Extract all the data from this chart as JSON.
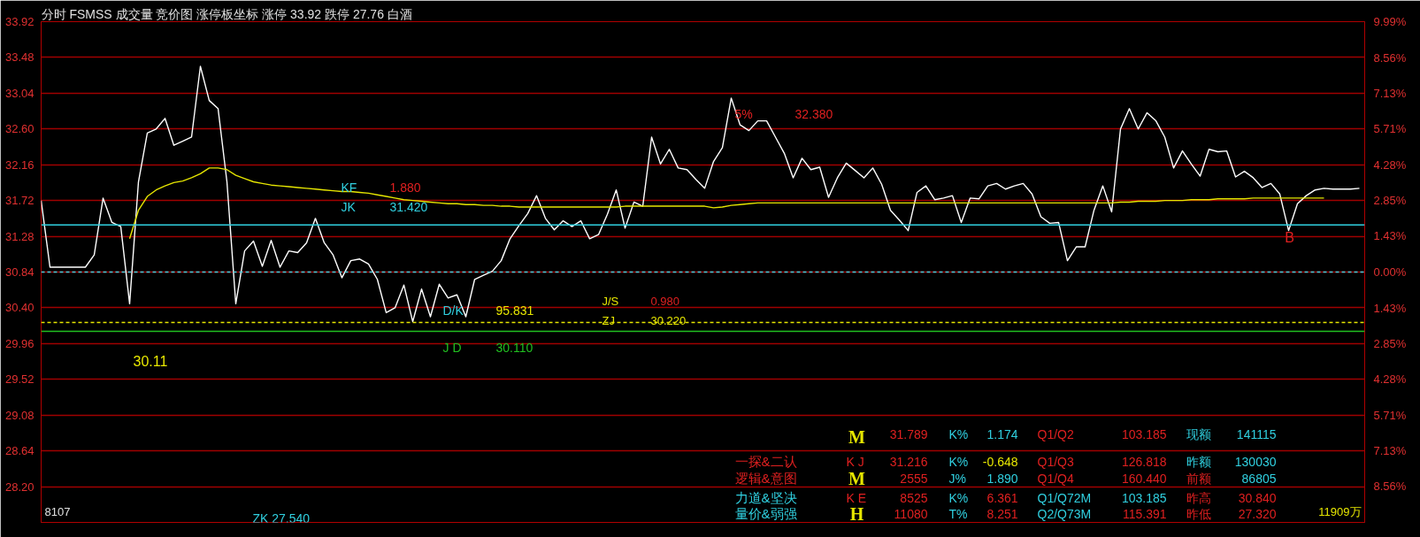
{
  "chart_data": {
    "type": "line",
    "title": "分时 FSMSS 成交量 竞价图 涨停板坐标 涨停 33.92 跌停 27.76 白酒",
    "categories": [
      null,
      null,
      null,
      null,
      null,
      null,
      null,
      null,
      null,
      null,
      null,
      null,
      null,
      null,
      null,
      null,
      null,
      null,
      null,
      null,
      null,
      null,
      null,
      null,
      null,
      null,
      null,
      null,
      null,
      null,
      null,
      null,
      null,
      null,
      null,
      null,
      null,
      null,
      null,
      null,
      null,
      null,
      null,
      null,
      null,
      null,
      null,
      null,
      null,
      null,
      null,
      null,
      null,
      null,
      null,
      null,
      null,
      null,
      null,
      null,
      null,
      null,
      null,
      null,
      null,
      null,
      null,
      null,
      null,
      null,
      null,
      null,
      null,
      null,
      null,
      null,
      null,
      null,
      null,
      null,
      null,
      null,
      null,
      null,
      null,
      null,
      null,
      null,
      null,
      null,
      null,
      null,
      null,
      null,
      null,
      null,
      null,
      null,
      null,
      null,
      null,
      null,
      null,
      null,
      null,
      null,
      null,
      null,
      null,
      null,
      null,
      null,
      null,
      null,
      null,
      null,
      null,
      null,
      null,
      null,
      null,
      null,
      null,
      null,
      null,
      null,
      null,
      null,
      null,
      null,
      null,
      null,
      null,
      null,
      null,
      null,
      null,
      null,
      null,
      null,
      null,
      null,
      null,
      null,
      null,
      null,
      null,
      null,
      null,
      null
    ],
    "series": [
      {
        "color": "#ffffff",
        "values": [
          31.72,
          30.9,
          30.9,
          30.9,
          30.9,
          30.9,
          31.05,
          31.75,
          31.45,
          31.4,
          30.45,
          31.95,
          32.55,
          32.6,
          32.73,
          32.4,
          32.45,
          32.5,
          33.37,
          32.95,
          32.85,
          31.95,
          30.45,
          31.1,
          31.22,
          30.91,
          31.23,
          30.9,
          31.1,
          31.08,
          31.2,
          31.5,
          31.2,
          31.05,
          30.77,
          30.98,
          31.0,
          30.94,
          30.75,
          30.34,
          30.4,
          30.68,
          30.23,
          30.63,
          30.29,
          30.69,
          30.52,
          30.56,
          30.29,
          30.75,
          30.8,
          30.85,
          30.98,
          31.25,
          31.41,
          31.56,
          31.78,
          31.5,
          31.36,
          31.47,
          31.4,
          31.47,
          31.25,
          31.3,
          31.55,
          31.85,
          31.38,
          31.7,
          31.65,
          32.5,
          32.17,
          32.35,
          32.12,
          32.1,
          31.98,
          31.87,
          32.2,
          32.37,
          32.98,
          32.65,
          32.58,
          32.7,
          32.7,
          32.5,
          32.3,
          32.0,
          32.24,
          32.1,
          32.13,
          31.76,
          32.0,
          32.18,
          32.09,
          32.0,
          32.12,
          31.92,
          31.6,
          31.48,
          31.35,
          31.82,
          31.9,
          31.73,
          31.75,
          31.78,
          31.45,
          31.75,
          31.74,
          31.9,
          31.93,
          31.86,
          31.9,
          31.93,
          31.8,
          31.52,
          31.44,
          31.45,
          30.98,
          31.15,
          31.15,
          31.6,
          31.9,
          31.58,
          32.6,
          32.85,
          32.6,
          32.8,
          32.7,
          32.5,
          32.12,
          32.33,
          32.17,
          32.02,
          32.35,
          32.32,
          32.33,
          32.01,
          32.08,
          32.0,
          31.88,
          31.93,
          31.8,
          31.35,
          31.68,
          31.78,
          31.85,
          31.87,
          31.86,
          31.86,
          31.86,
          31.87
        ]
      },
      {
        "color": "#e6e600",
        "values": [
          null,
          null,
          null,
          null,
          null,
          null,
          null,
          null,
          null,
          null,
          31.25,
          31.6,
          31.77,
          31.85,
          31.9,
          31.94,
          31.96,
          32.0,
          32.05,
          32.12,
          32.12,
          32.1,
          32.03,
          31.99,
          31.95,
          31.93,
          31.91,
          31.9,
          31.89,
          31.88,
          31.87,
          31.86,
          31.85,
          31.84,
          31.83,
          31.83,
          31.82,
          31.81,
          31.79,
          31.77,
          31.75,
          31.73,
          31.72,
          31.71,
          31.7,
          31.69,
          31.68,
          31.68,
          31.67,
          31.67,
          31.66,
          31.66,
          31.65,
          31.65,
          31.64,
          31.64,
          31.64,
          31.64,
          31.64,
          31.64,
          31.64,
          31.64,
          31.64,
          31.64,
          31.64,
          31.64,
          31.65,
          31.65,
          31.65,
          31.65,
          31.65,
          31.65,
          31.65,
          31.65,
          31.65,
          31.65,
          31.63,
          31.64,
          31.66,
          31.67,
          31.68,
          31.69,
          31.69,
          31.69,
          31.69,
          31.69,
          31.69,
          31.69,
          31.69,
          31.69,
          31.69,
          31.69,
          31.69,
          31.69,
          31.69,
          31.69,
          31.69,
          31.69,
          31.69,
          31.69,
          31.69,
          31.69,
          31.69,
          31.69,
          31.69,
          31.69,
          31.69,
          31.69,
          31.69,
          31.69,
          31.69,
          31.69,
          31.69,
          31.69,
          31.69,
          31.69,
          31.69,
          31.69,
          31.69,
          31.69,
          31.69,
          31.69,
          31.7,
          31.7,
          31.71,
          31.71,
          31.71,
          31.72,
          31.72,
          31.72,
          31.73,
          31.73,
          31.73,
          31.74,
          31.74,
          31.74,
          31.74,
          31.75,
          31.75,
          31.75,
          31.75,
          31.75,
          31.75,
          31.75,
          31.75,
          31.75,
          null,
          null,
          null,
          null
        ]
      }
    ],
    "ylim": [
      27.76,
      33.92
    ],
    "yticks": [
      33.92,
      33.48,
      33.04,
      {
        "value": 32.6,
        "label": "32.60"
      },
      32.16,
      31.72,
      31.28,
      30.84,
      {
        "value": 30.4,
        "label": "30.40"
      },
      29.96,
      29.52,
      29.08,
      28.64,
      {
        "value": 28.2,
        "label": "28.20"
      }
    ],
    "y2lim": [
      -9.99,
      9.99
    ],
    "y2ticks": [
      {
        "value": 9.99,
        "label": "9.99%"
      },
      {
        "value": 8.56,
        "label": "8.56%"
      },
      {
        "value": 7.13,
        "label": "7.13%"
      },
      {
        "value": 5.71,
        "label": "5.71%"
      },
      {
        "value": 4.28,
        "label": "4.28%"
      },
      {
        "value": 2.85,
        "label": "2.85%"
      },
      {
        "value": 1.43,
        "label": "1.43%"
      },
      {
        "value": 0,
        "label": "0.00%"
      },
      {
        "value": -1.43,
        "label": "1.43%"
      },
      {
        "value": -2.85,
        "label": "2.85%"
      },
      {
        "value": -4.28,
        "label": "4.28%"
      },
      {
        "value": -5.71,
        "label": "5.71%"
      },
      {
        "value": -7.13,
        "label": "7.13%"
      },
      {
        "value": -8.56,
        "label": "8.56%"
      }
    ],
    "ref_lines": [
      {
        "axis": "y",
        "value": 30.84,
        "color": "#40d0e0",
        "line_style": "dashed"
      },
      {
        "axis": "y",
        "value": 31.42,
        "color": "#30d0e0",
        "line_style": "solid"
      },
      {
        "axis": "y",
        "value": 30.22,
        "color": "#e6e600",
        "line_style": "dashed"
      },
      {
        "axis": "y",
        "value": 30.11,
        "color": "#20c020",
        "line_style": "solid"
      }
    ],
    "annotations": [
      "KF",
      "1.880",
      "JK",
      "31.420",
      "D/K",
      "95.831",
      "J D",
      "30.110",
      "J/S",
      "0.980",
      "ZJ",
      "30.220",
      "30.11",
      "ZK 27.540",
      "5%",
      "32.380",
      "B",
      "8107",
      "11909万",
      "31.789",
      "K%",
      "1.174",
      "Q1/Q2",
      "103.185",
      "现额",
      "141115",
      "一探&二认",
      "K J",
      "31.216",
      "K%",
      "-0.648",
      "Q1/Q3",
      "126.818",
      "昨额",
      "130030",
      "逻辑&意图",
      "2555",
      "J%",
      "1.890",
      "Q1/Q4",
      "160.440",
      "前额",
      "86805",
      "力道&坚决",
      "K E",
      "8525",
      "K%",
      "6.361",
      "Q1/Q72M",
      "103.185",
      "昨高",
      "30.840",
      "量价&弱强",
      "11080",
      "T%",
      "8.251",
      "Q2/Q73M",
      "115.391",
      "昨低",
      "27.320",
      "M",
      "M",
      "H"
    ],
    "grid": "y",
    "tick_labels": "y"
  }
}
